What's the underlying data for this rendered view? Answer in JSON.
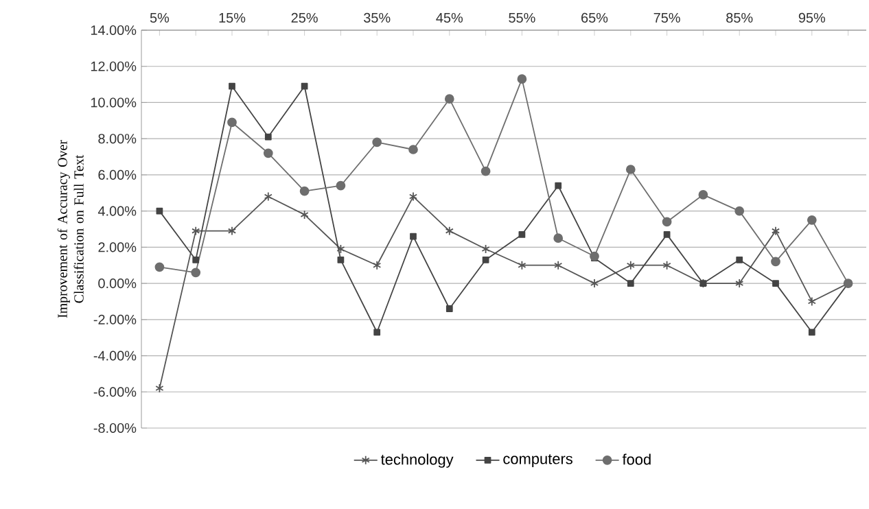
{
  "chart_data": {
    "type": "line",
    "ylabel": "Improvement of Accuracy Over Classification on Full Text",
    "categories": [
      "5%",
      null,
      "15%",
      null,
      "25%",
      null,
      "35%",
      null,
      "45%",
      null,
      "55%",
      null,
      "65%",
      null,
      "75%",
      null,
      "85%",
      null,
      "95%",
      null
    ],
    "ylim": [
      -8,
      14
    ],
    "yticks": [
      {
        "value": -8,
        "label": "-8.00%"
      },
      {
        "value": -6,
        "label": "-6.00%"
      },
      {
        "value": -4,
        "label": "-4.00%"
      },
      {
        "value": -2,
        "label": "-2.00%"
      },
      {
        "value": 0,
        "label": "0.00%"
      },
      {
        "value": 2,
        "label": "2.00%"
      },
      {
        "value": 4,
        "label": "4.00%"
      },
      {
        "value": 6,
        "label": "6.00%"
      },
      {
        "value": 8,
        "label": "8.00%"
      },
      {
        "value": 10,
        "label": "10.00%"
      },
      {
        "value": 12,
        "label": "12.00%"
      },
      {
        "value": 14,
        "label": "14.00%"
      }
    ],
    "grid": "y",
    "legend": "bottom",
    "series": [
      {
        "name": "technology",
        "color": "#555555",
        "marker": "cross",
        "values": [
          -5.8,
          2.9,
          2.9,
          4.8,
          3.8,
          1.9,
          1.0,
          4.8,
          2.9,
          1.9,
          1.0,
          1.0,
          0,
          1.0,
          1.0,
          0,
          0,
          2.9,
          -1.0,
          0
        ]
      },
      {
        "name": "computers",
        "color": "#444444",
        "marker": "square",
        "values": [
          4.0,
          1.3,
          10.9,
          8.1,
          10.9,
          1.3,
          -2.7,
          2.6,
          -1.4,
          1.3,
          2.7,
          5.4,
          1.4,
          0,
          2.7,
          0,
          1.3,
          0,
          -2.7,
          0
        ]
      },
      {
        "name": "food",
        "color": "#6e6e6e",
        "marker": "circle",
        "values": [
          0.9,
          0.6,
          8.9,
          7.2,
          5.1,
          5.4,
          7.8,
          7.4,
          10.2,
          6.2,
          11.3,
          2.5,
          1.5,
          6.3,
          3.4,
          4.9,
          4.0,
          1.2,
          3.5,
          0
        ]
      }
    ]
  }
}
